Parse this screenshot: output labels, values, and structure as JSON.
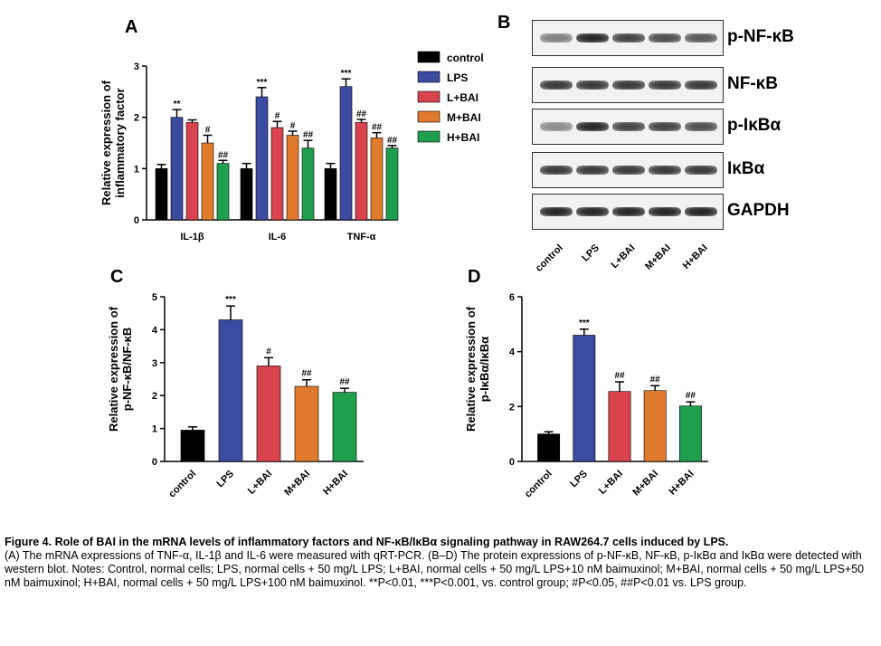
{
  "panel_a": {
    "letter": "A",
    "ylabel_line1": "Relative expression of",
    "ylabel_line2": "inflammatory factor",
    "legend_title": "",
    "chart_data": {
      "type": "bar",
      "categories": [
        "IL-1β",
        "IL-6",
        "TNF-α"
      ],
      "ylim": [
        0,
        3
      ],
      "yticks": [
        "0",
        "1",
        "2",
        "3"
      ],
      "series": [
        {
          "name": "control",
          "color": "#000000",
          "values": [
            1.0,
            1.0,
            1.0
          ],
          "errors": [
            0.08,
            0.1,
            0.1
          ],
          "sig": [
            "",
            "",
            ""
          ]
        },
        {
          "name": "LPS",
          "color": "#3b4ba0",
          "values": [
            2.0,
            2.4,
            2.6
          ],
          "errors": [
            0.15,
            0.18,
            0.15
          ],
          "sig": [
            "**",
            "***",
            "***"
          ]
        },
        {
          "name": "L+BAI",
          "color": "#d9434e",
          "values": [
            1.9,
            1.8,
            1.9
          ],
          "errors": [
            0.05,
            0.12,
            0.06
          ],
          "sig": [
            "",
            "#",
            "##"
          ]
        },
        {
          "name": "M+BAI",
          "color": "#e07b2e",
          "values": [
            1.5,
            1.65,
            1.6
          ],
          "errors": [
            0.15,
            0.08,
            0.1
          ],
          "sig": [
            "#",
            "#",
            "##"
          ]
        },
        {
          "name": "H+BAI",
          "color": "#1f9e4e",
          "values": [
            1.1,
            1.4,
            1.4
          ],
          "errors": [
            0.06,
            0.15,
            0.05
          ],
          "sig": [
            "##",
            "##",
            "##"
          ]
        }
      ]
    }
  },
  "panel_b": {
    "letter": "B",
    "rows": [
      "p-NF-κB",
      "NF-κB",
      "p-IκBα",
      "IκBα",
      "GAPDH"
    ],
    "lanes": [
      "control",
      "LPS",
      "L+BAI",
      "M+BAI",
      "H+BAI"
    ]
  },
  "panel_c": {
    "letter": "C",
    "ylabel_line1": "Relative expression of",
    "ylabel_line2": "p-NF-κB/NF-κB",
    "chart_data": {
      "type": "bar",
      "categories": [
        "control",
        "LPS",
        "L+BAI",
        "M+BAI",
        "H+BAI"
      ],
      "colors": [
        "#000000",
        "#3b4ba0",
        "#d9434e",
        "#e07b2e",
        "#1f9e4e"
      ],
      "values": [
        0.95,
        4.3,
        2.9,
        2.28,
        2.1
      ],
      "errors": [
        0.1,
        0.42,
        0.25,
        0.2,
        0.12
      ],
      "sig": [
        "",
        "***",
        "#",
        "##",
        "##"
      ],
      "ylim": [
        0,
        5
      ],
      "yticks": [
        "0",
        "1",
        "2",
        "3",
        "4",
        "5"
      ]
    }
  },
  "panel_d": {
    "letter": "D",
    "ylabel_line1": "Relative expression of",
    "ylabel_line2": "p-IκBα/IκBα",
    "chart_data": {
      "type": "bar",
      "categories": [
        "control",
        "LPS",
        "L+BAI",
        "M+BAI",
        "H+BAI"
      ],
      "colors": [
        "#000000",
        "#3b4ba0",
        "#d9434e",
        "#e07b2e",
        "#1f9e4e"
      ],
      "values": [
        1.0,
        4.6,
        2.55,
        2.58,
        2.02
      ],
      "errors": [
        0.08,
        0.22,
        0.35,
        0.18,
        0.15
      ],
      "sig": [
        "",
        "***",
        "##",
        "##",
        "##"
      ],
      "ylim": [
        0,
        6
      ],
      "yticks": [
        "0",
        "2",
        "4",
        "6"
      ]
    }
  },
  "caption": {
    "title": "Figure 4. Role of BAI in the mRNA levels of inflammatory factors and NF-κB/IκBα signaling pathway in RAW264.7 cells induced by LPS.",
    "body": "(A) The mRNA expressions of TNF-α, IL-1β and IL-6 were measured with qRT-PCR. (B–D) The protein expressions of p-NF-κB, NF-κB, p-IκBα and IκBα were detected with western blot. Notes: Control, normal cells; LPS, normal cells + 50 mg/L LPS; L+BAI, normal cells + 50 mg/L LPS+10 nM baimuxinol; M+BAI, normal cells + 50 mg/L LPS+50 nM baimuxinol; H+BAI, normal cells + 50 mg/L LPS+100 nM baimuxinol. **P<0.01, ***P<0.001, vs. control group; #P<0.05, ##P<0.01 vs. LPS group."
  }
}
